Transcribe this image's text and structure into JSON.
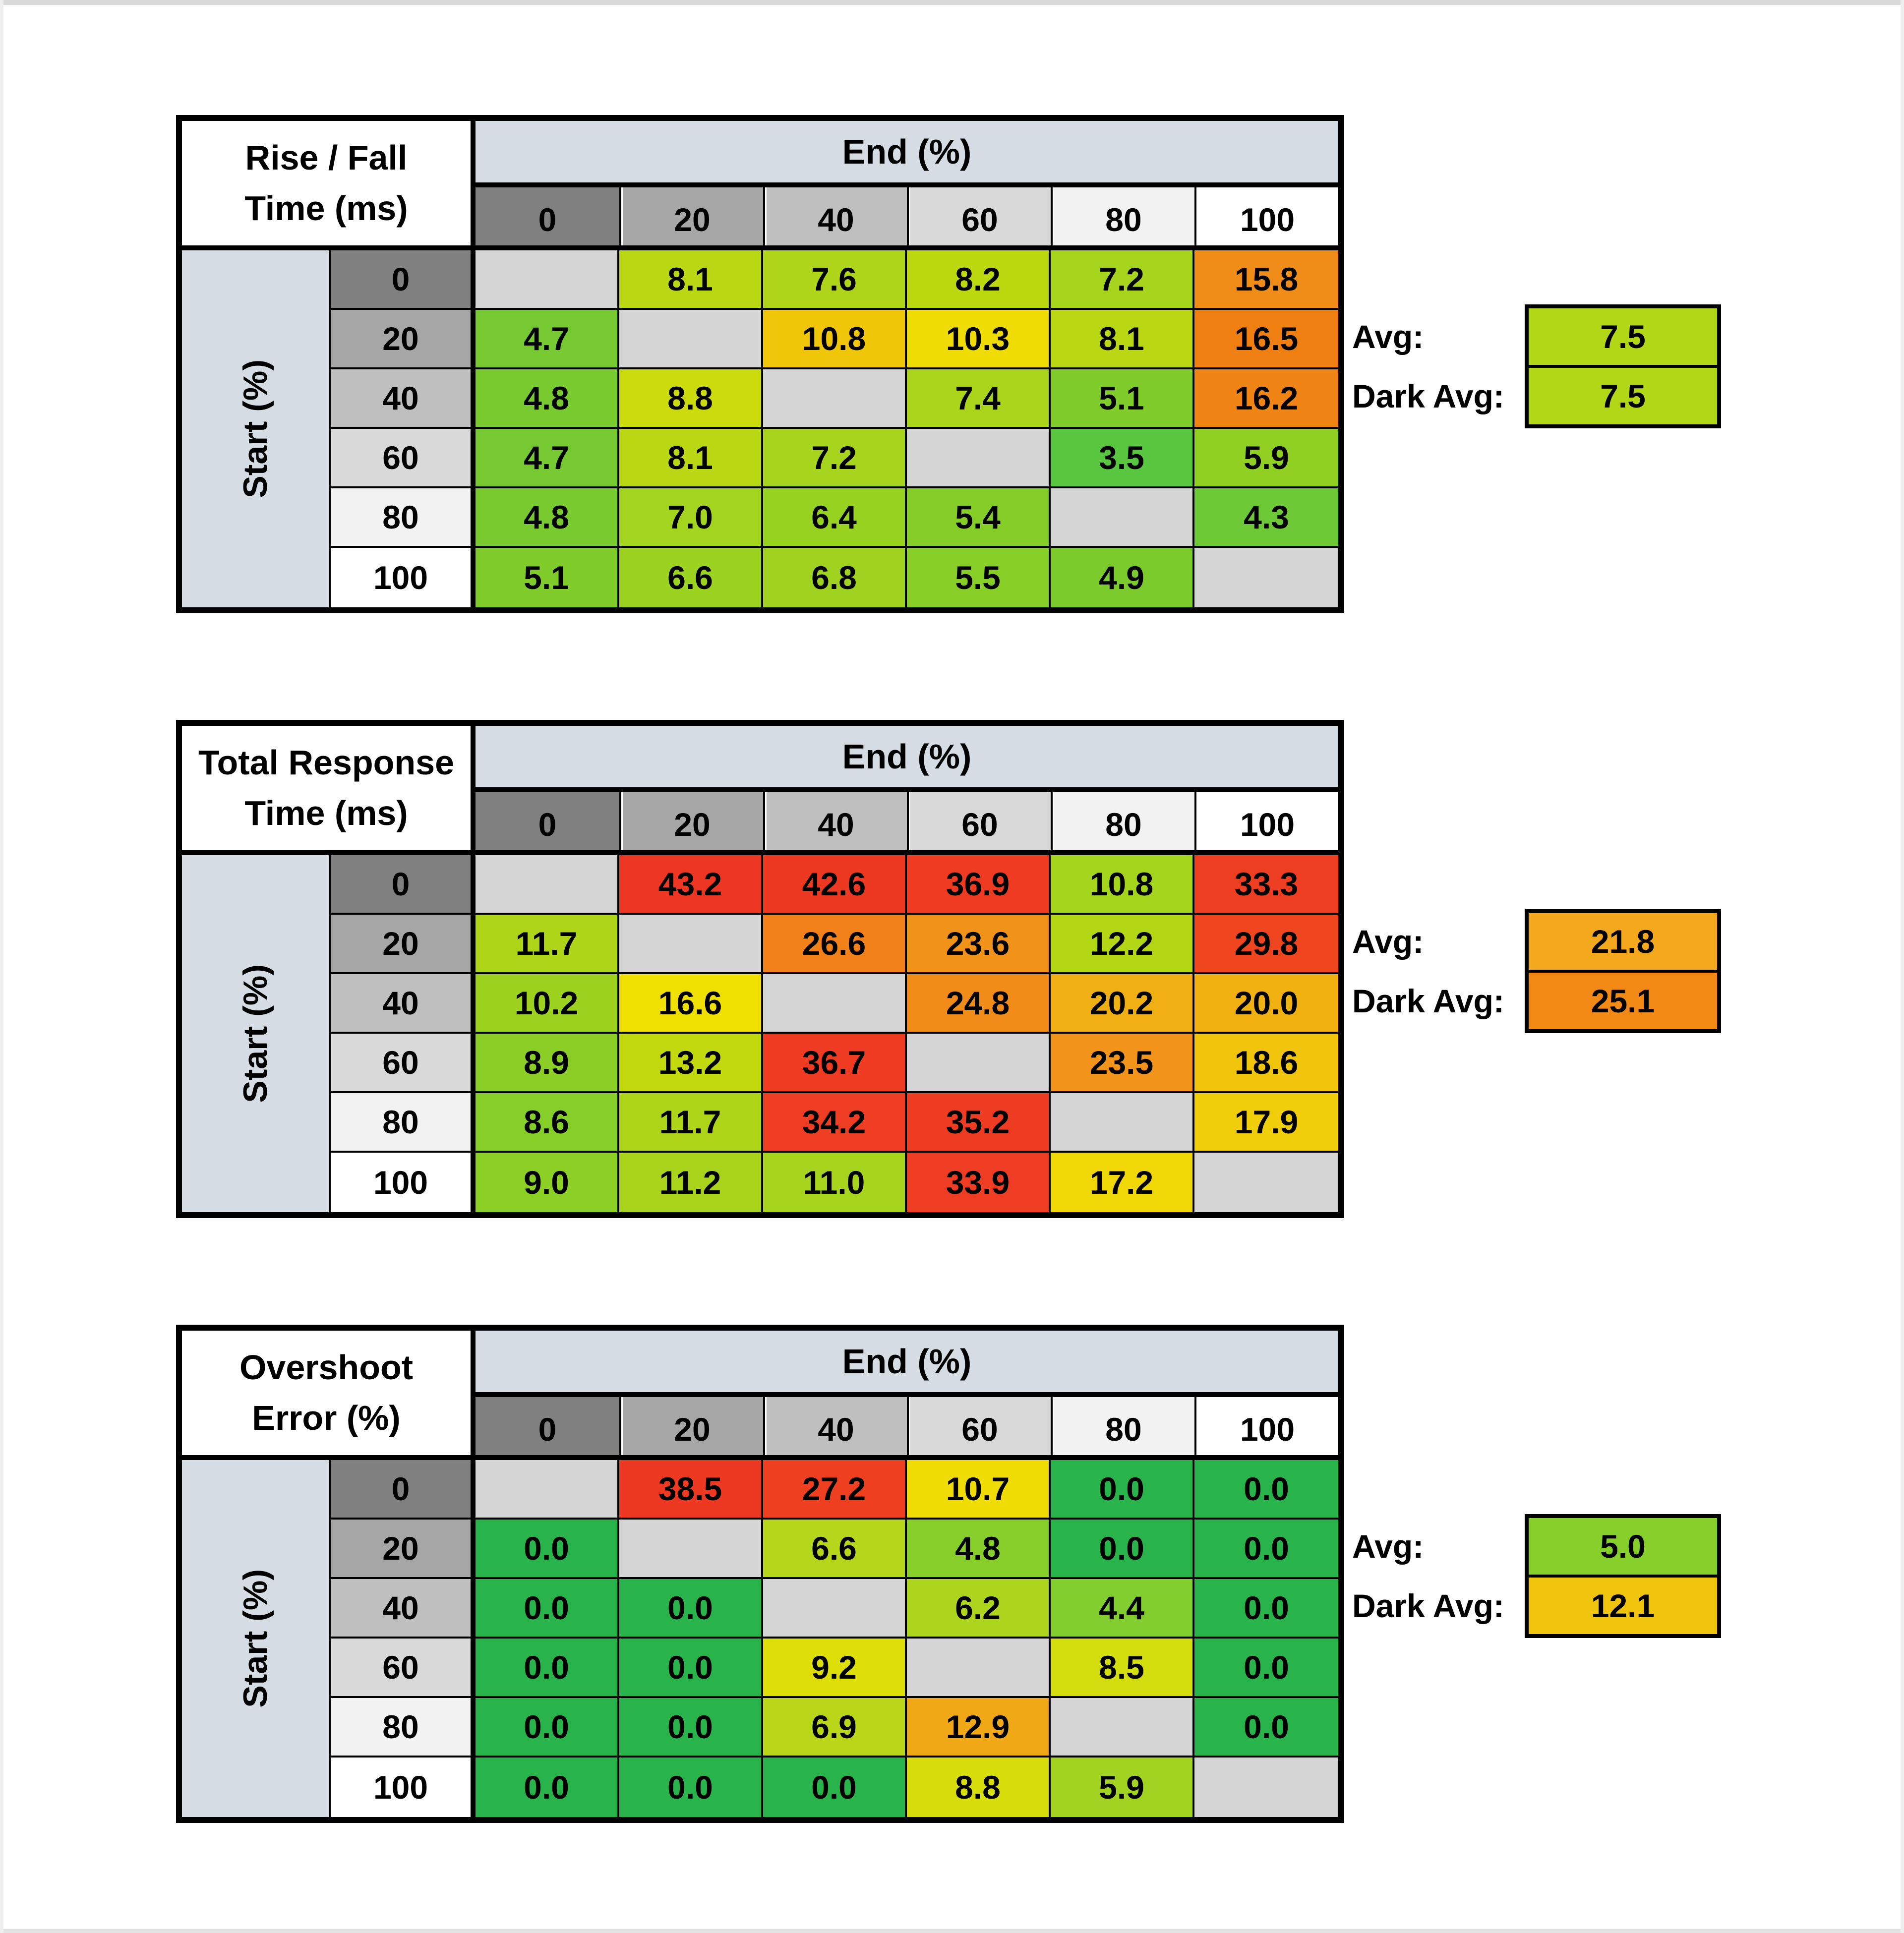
{
  "page": {
    "background": "#FFFFFF",
    "top_edge_color": "#D9D9D9",
    "side_edge_color": "#EEEEEE"
  },
  "labels": {
    "avg": "Avg:",
    "dark_avg": "Dark Avg:"
  },
  "header_shades": [
    "#808080",
    "#A6A6A6",
    "#BFBFBF",
    "#D9D9D9",
    "#F2F2F2",
    "#FFFFFF"
  ],
  "grid": {
    "diagonal_color": "#D5D5D5",
    "band_color": "#D6DCE4",
    "line_color": "#000000"
  },
  "chart_data": [
    {
      "type": "heatmap",
      "title": "Rise / Fall Time (ms)",
      "title_line1": "Rise / Fall",
      "title_line2": "Time (ms)",
      "x_label": "End (%)",
      "y_label": "Start (%)",
      "x": [
        0,
        20,
        40,
        60,
        80,
        100
      ],
      "y": [
        0,
        20,
        40,
        60,
        80,
        100
      ],
      "values": [
        [
          null,
          8.1,
          7.6,
          8.2,
          7.2,
          15.8
        ],
        [
          4.7,
          null,
          10.8,
          10.3,
          8.1,
          16.5
        ],
        [
          4.8,
          8.8,
          null,
          7.4,
          5.1,
          16.2
        ],
        [
          4.7,
          8.1,
          7.2,
          null,
          3.5,
          5.9
        ],
        [
          4.8,
          7.0,
          6.4,
          5.4,
          null,
          4.3
        ],
        [
          5.1,
          6.6,
          6.8,
          5.5,
          4.9,
          null
        ]
      ],
      "colors": [
        [
          null,
          "#BAD714",
          "#AFD51A",
          "#BCD80F",
          "#A7D41D",
          "#F08C18"
        ],
        [
          "#76C930",
          null,
          "#F0C708",
          "#EEDC04",
          "#BAD714",
          "#F07F12"
        ],
        [
          "#78CA2F",
          "#CBDB0C",
          null,
          "#AAD51B",
          "#7FCC2B",
          "#F08414"
        ],
        [
          "#76C930",
          "#BAD714",
          "#A7D41D",
          null,
          "#58C63F",
          "#8FD023"
        ],
        [
          "#78CA2F",
          "#A3D41E",
          "#98D221",
          "#85CE28",
          null,
          "#6DC935"
        ],
        [
          "#7FCC2B",
          "#9CD320",
          "#9FD31F",
          "#87CE27",
          "#7BCB2D",
          null
        ]
      ],
      "avg": 7.5,
      "avg_color": "#B2D716",
      "dark_avg": 7.5,
      "dark_avg_color": "#B2D716"
    },
    {
      "type": "heatmap",
      "title": "Total Response Time (ms)",
      "title_line1": "Total Response",
      "title_line2": "Time (ms)",
      "x_label": "End (%)",
      "y_label": "Start (%)",
      "x": [
        0,
        20,
        40,
        60,
        80,
        100
      ],
      "y": [
        0,
        20,
        40,
        60,
        80,
        100
      ],
      "values": [
        [
          null,
          43.2,
          42.6,
          36.9,
          10.8,
          33.3
        ],
        [
          11.7,
          null,
          26.6,
          23.6,
          12.2,
          29.8
        ],
        [
          10.2,
          16.6,
          null,
          24.8,
          20.2,
          20.0
        ],
        [
          8.9,
          13.2,
          36.7,
          null,
          23.5,
          18.6
        ],
        [
          8.6,
          11.7,
          34.2,
          35.2,
          null,
          17.9
        ],
        [
          9.0,
          11.2,
          11.0,
          33.9,
          17.2,
          null
        ]
      ],
      "colors": [
        [
          null,
          "#ED3722",
          "#ED3822",
          "#EE3B22",
          "#A5D41D",
          "#EE3E21"
        ],
        [
          "#AFD519",
          null,
          "#F28119",
          "#F19319",
          "#B4D715",
          "#EF4620"
        ],
        [
          "#9DD31E",
          "#EFE002",
          null,
          "#F28C18",
          "#F0AF12",
          "#F0B111"
        ],
        [
          "#8BCF26",
          "#C2D90E",
          "#EE3B22",
          null,
          "#F19419",
          "#F0C50C"
        ],
        [
          "#86CE28",
          "#AFD519",
          "#EE3D22",
          "#EE3C22",
          null,
          "#F0CE09"
        ],
        [
          "#8CCF25",
          "#A9D41B",
          "#A7D41C",
          "#EE3D22",
          "#F0D807",
          null
        ]
      ],
      "avg": 21.8,
      "avg_color": "#F3A91B",
      "dark_avg": 25.1,
      "dark_avg_color": "#F28915"
    },
    {
      "type": "heatmap",
      "title": "Overshoot Error (%)",
      "title_line1": "Overshoot",
      "title_line2": "Error (%)",
      "x_label": "End (%)",
      "y_label": "Start (%)",
      "x": [
        0,
        20,
        40,
        60,
        80,
        100
      ],
      "y": [
        0,
        20,
        40,
        60,
        80,
        100
      ],
      "values": [
        [
          null,
          38.5,
          27.2,
          10.7,
          0.0,
          0.0
        ],
        [
          0.0,
          null,
          6.6,
          4.8,
          0.0,
          0.0
        ],
        [
          0.0,
          0.0,
          null,
          6.2,
          4.4,
          0.0
        ],
        [
          0.0,
          0.0,
          9.2,
          null,
          8.5,
          0.0
        ],
        [
          0.0,
          0.0,
          6.9,
          12.9,
          null,
          0.0
        ],
        [
          0.0,
          0.0,
          0.0,
          8.8,
          5.9,
          null
        ]
      ],
      "colors": [
        [
          null,
          "#ED3822",
          "#EE4021",
          "#F0DC05",
          "#29B34B",
          "#29B34B"
        ],
        [
          "#29B34B",
          null,
          "#B5D61A",
          "#89CF2C",
          "#29B34B",
          "#29B34B"
        ],
        [
          "#29B34B",
          "#29B34B",
          null,
          "#AED51D",
          "#82CE2F",
          "#29B34B"
        ],
        [
          "#29B34B",
          "#29B34B",
          "#DEDF09",
          null,
          "#D4DD0D",
          "#29B34B"
        ],
        [
          "#29B34B",
          "#29B34B",
          "#B9D718",
          "#F0A817",
          null,
          "#29B34B"
        ],
        [
          "#29B34B",
          "#29B34B",
          "#29B34B",
          "#D8DE0B",
          "#A1D320",
          null
        ]
      ],
      "avg": 5.0,
      "avg_color": "#87D02C",
      "dark_avg": 12.1,
      "dark_avg_color": "#F0C30D"
    }
  ]
}
